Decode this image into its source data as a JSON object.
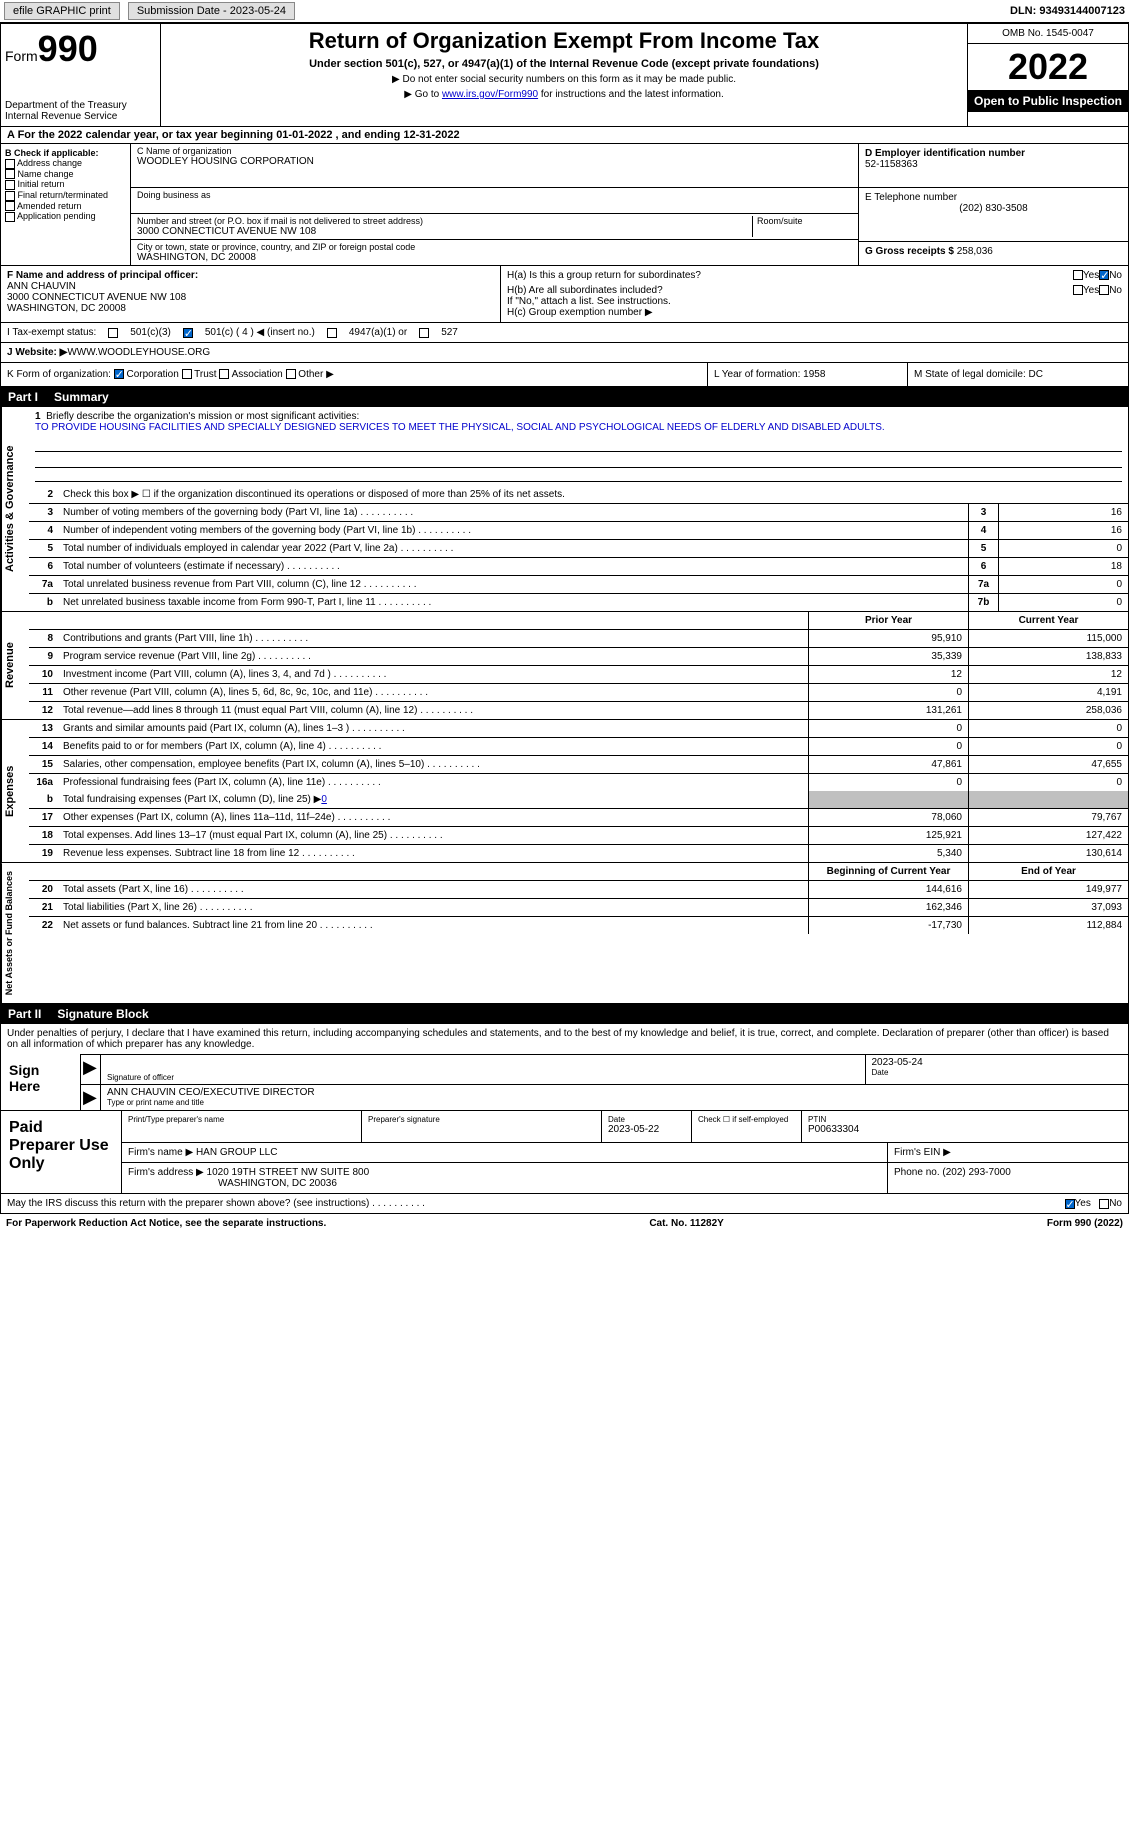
{
  "topbar": {
    "efile": "efile GRAPHIC print",
    "submission": "Submission Date - 2023-05-24",
    "dln": "DLN: 93493144007123"
  },
  "header": {
    "form_label": "Form",
    "form_num": "990",
    "dept": "Department of the Treasury",
    "irs": "Internal Revenue Service",
    "title": "Return of Organization Exempt From Income Tax",
    "sub": "Under section 501(c), 527, or 4947(a)(1) of the Internal Revenue Code (except private foundations)",
    "note1": "▶ Do not enter social security numbers on this form as it may be made public.",
    "note2_pre": "▶ Go to ",
    "note2_link": "www.irs.gov/Form990",
    "note2_post": " for instructions and the latest information.",
    "omb": "OMB No. 1545-0047",
    "year": "2022",
    "open": "Open to Public Inspection"
  },
  "row_a": "A For the 2022 calendar year, or tax year beginning 01-01-2022    , and ending 12-31-2022",
  "col_b": {
    "label": "B Check if applicable:",
    "items": [
      "Address change",
      "Name change",
      "Initial return",
      "Final return/terminated",
      "Amended return",
      "Application pending"
    ]
  },
  "col_c": {
    "name_label": "C Name of organization",
    "name": "WOODLEY HOUSING CORPORATION",
    "dba_label": "Doing business as",
    "street_label": "Number and street (or P.O. box if mail is not delivered to street address)",
    "room_label": "Room/suite",
    "street": "3000 CONNECTICUT AVENUE NW 108",
    "city_label": "City or town, state or province, country, and ZIP or foreign postal code",
    "city": "WASHINGTON, DC  20008"
  },
  "col_de": {
    "d_label": "D Employer identification number",
    "d_val": "52-1158363",
    "e_label": "E Telephone number",
    "e_val": "(202) 830-3508",
    "g_label": "G Gross receipts $ ",
    "g_val": "258,036"
  },
  "fgh": {
    "f_label": "F Name and address of principal officer:",
    "f_name": "ANN CHAUVIN",
    "f_addr1": "3000 CONNECTICUT AVENUE NW 108",
    "f_addr2": "WASHINGTON, DC  20008",
    "ha": "H(a)  Is this a group return for subordinates?",
    "hb": "H(b)  Are all subordinates included?",
    "hb_note": "If \"No,\" attach a list. See instructions.",
    "hc": "H(c)  Group exemption number ▶",
    "yes": "Yes",
    "no": "No"
  },
  "row_i": {
    "label": "I   Tax-exempt status:",
    "opt1": "501(c)(3)",
    "opt2": "501(c) ( 4 ) ◀ (insert no.)",
    "opt3": "4947(a)(1) or",
    "opt4": "527"
  },
  "row_j": {
    "label": "J   Website: ▶  ",
    "val": "WWW.WOODLEYHOUSE.ORG"
  },
  "row_kl": {
    "k_label": "K Form of organization:",
    "k_corp": "Corporation",
    "k_trust": "Trust",
    "k_assoc": "Association",
    "k_other": "Other ▶",
    "l": "L Year of formation: 1958",
    "m": "M State of legal domicile: DC"
  },
  "part1": {
    "num": "Part I",
    "title": "Summary"
  },
  "summary": {
    "sec1_label": "Activities & Governance",
    "line1_label": "Briefly describe the organization's mission or most significant activities:",
    "line1_text": "TO PROVIDE HOUSING FACILITIES AND SPECIALLY DESIGNED SERVICES TO MEET THE PHYSICAL, SOCIAL AND PSYCHOLOGICAL NEEDS OF ELDERLY AND DISABLED ADULTS.",
    "line2": "Check this box ▶ ☐  if the organization discontinued its operations or disposed of more than 25% of its net assets.",
    "rows_ag": [
      {
        "n": "3",
        "t": "Number of voting members of the governing body (Part VI, line 1a)",
        "b": "3",
        "v": "16"
      },
      {
        "n": "4",
        "t": "Number of independent voting members of the governing body (Part VI, line 1b)",
        "b": "4",
        "v": "16"
      },
      {
        "n": "5",
        "t": "Total number of individuals employed in calendar year 2022 (Part V, line 2a)",
        "b": "5",
        "v": "0"
      },
      {
        "n": "6",
        "t": "Total number of volunteers (estimate if necessary)",
        "b": "6",
        "v": "18"
      },
      {
        "n": "7a",
        "t": "Total unrelated business revenue from Part VIII, column (C), line 12",
        "b": "7a",
        "v": "0"
      },
      {
        "n": "b",
        "t": "Net unrelated business taxable income from Form 990-T, Part I, line 11",
        "b": "7b",
        "v": "0"
      }
    ],
    "sec2_label": "Revenue",
    "col_prior": "Prior Year",
    "col_current": "Current Year",
    "rows_rev": [
      {
        "n": "8",
        "t": "Contributions and grants (Part VIII, line 1h)",
        "p": "95,910",
        "c": "115,000"
      },
      {
        "n": "9",
        "t": "Program service revenue (Part VIII, line 2g)",
        "p": "35,339",
        "c": "138,833"
      },
      {
        "n": "10",
        "t": "Investment income (Part VIII, column (A), lines 3, 4, and 7d )",
        "p": "12",
        "c": "12"
      },
      {
        "n": "11",
        "t": "Other revenue (Part VIII, column (A), lines 5, 6d, 8c, 9c, 10c, and 11e)",
        "p": "0",
        "c": "4,191"
      },
      {
        "n": "12",
        "t": "Total revenue—add lines 8 through 11 (must equal Part VIII, column (A), line 12)",
        "p": "131,261",
        "c": "258,036"
      }
    ],
    "sec3_label": "Expenses",
    "rows_exp": [
      {
        "n": "13",
        "t": "Grants and similar amounts paid (Part IX, column (A), lines 1–3 )",
        "p": "0",
        "c": "0"
      },
      {
        "n": "14",
        "t": "Benefits paid to or for members (Part IX, column (A), line 4)",
        "p": "0",
        "c": "0"
      },
      {
        "n": "15",
        "t": "Salaries, other compensation, employee benefits (Part IX, column (A), lines 5–10)",
        "p": "47,861",
        "c": "47,655"
      },
      {
        "n": "16a",
        "t": "Professional fundraising fees (Part IX, column (A), line 11e)",
        "p": "0",
        "c": "0"
      }
    ],
    "line16b_pre": "Total fundraising expenses (Part IX, column (D), line 25) ▶",
    "line16b_val": "0",
    "rows_exp2": [
      {
        "n": "17",
        "t": "Other expenses (Part IX, column (A), lines 11a–11d, 11f–24e)",
        "p": "78,060",
        "c": "79,767"
      },
      {
        "n": "18",
        "t": "Total expenses. Add lines 13–17 (must equal Part IX, column (A), line 25)",
        "p": "125,921",
        "c": "127,422"
      },
      {
        "n": "19",
        "t": "Revenue less expenses. Subtract line 18 from line 12",
        "p": "5,340",
        "c": "130,614"
      }
    ],
    "sec4_label": "Net Assets or Fund Balances",
    "col_begin": "Beginning of Current Year",
    "col_end": "End of Year",
    "rows_na": [
      {
        "n": "20",
        "t": "Total assets (Part X, line 16)",
        "p": "144,616",
        "c": "149,977"
      },
      {
        "n": "21",
        "t": "Total liabilities (Part X, line 26)",
        "p": "162,346",
        "c": "37,093"
      },
      {
        "n": "22",
        "t": "Net assets or fund balances. Subtract line 21 from line 20",
        "p": "-17,730",
        "c": "112,884"
      }
    ]
  },
  "part2": {
    "num": "Part II",
    "title": "Signature Block"
  },
  "sig": {
    "decl": "Under penalties of perjury, I declare that I have examined this return, including accompanying schedules and statements, and to the best of my knowledge and belief, it is true, correct, and complete. Declaration of preparer (other than officer) is based on all information of which preparer has any knowledge.",
    "sign_here": "Sign Here",
    "sig_officer": "Signature of officer",
    "date": "Date",
    "date_val": "2023-05-24",
    "name_title": "ANN CHAUVIN  CEO/EXECUTIVE DIRECTOR",
    "type_name": "Type or print name and title"
  },
  "paid": {
    "label": "Paid Preparer Use Only",
    "print_name": "Print/Type preparer's name",
    "prep_sig": "Preparer's signature",
    "date_label": "Date",
    "date_val": "2023-05-22",
    "check_label": "Check ☐ if self-employed",
    "ptin_label": "PTIN",
    "ptin_val": "P00633304",
    "firm_name_label": "Firm's name     ▶",
    "firm_name": "HAN GROUP LLC",
    "firm_ein_label": "Firm's EIN ▶",
    "firm_addr_label": "Firm's address ▶",
    "firm_addr1": "1020 19TH STREET NW SUITE 800",
    "firm_addr2": "WASHINGTON, DC  20036",
    "phone_label": "Phone no. ",
    "phone": "(202) 293-7000"
  },
  "footer": {
    "discuss": "May the IRS discuss this return with the preparer shown above? (see instructions)",
    "yes": "Yes",
    "no": "No",
    "paperwork": "For Paperwork Reduction Act Notice, see the separate instructions.",
    "cat": "Cat. No. 11282Y",
    "form": "Form 990 (2022)"
  }
}
